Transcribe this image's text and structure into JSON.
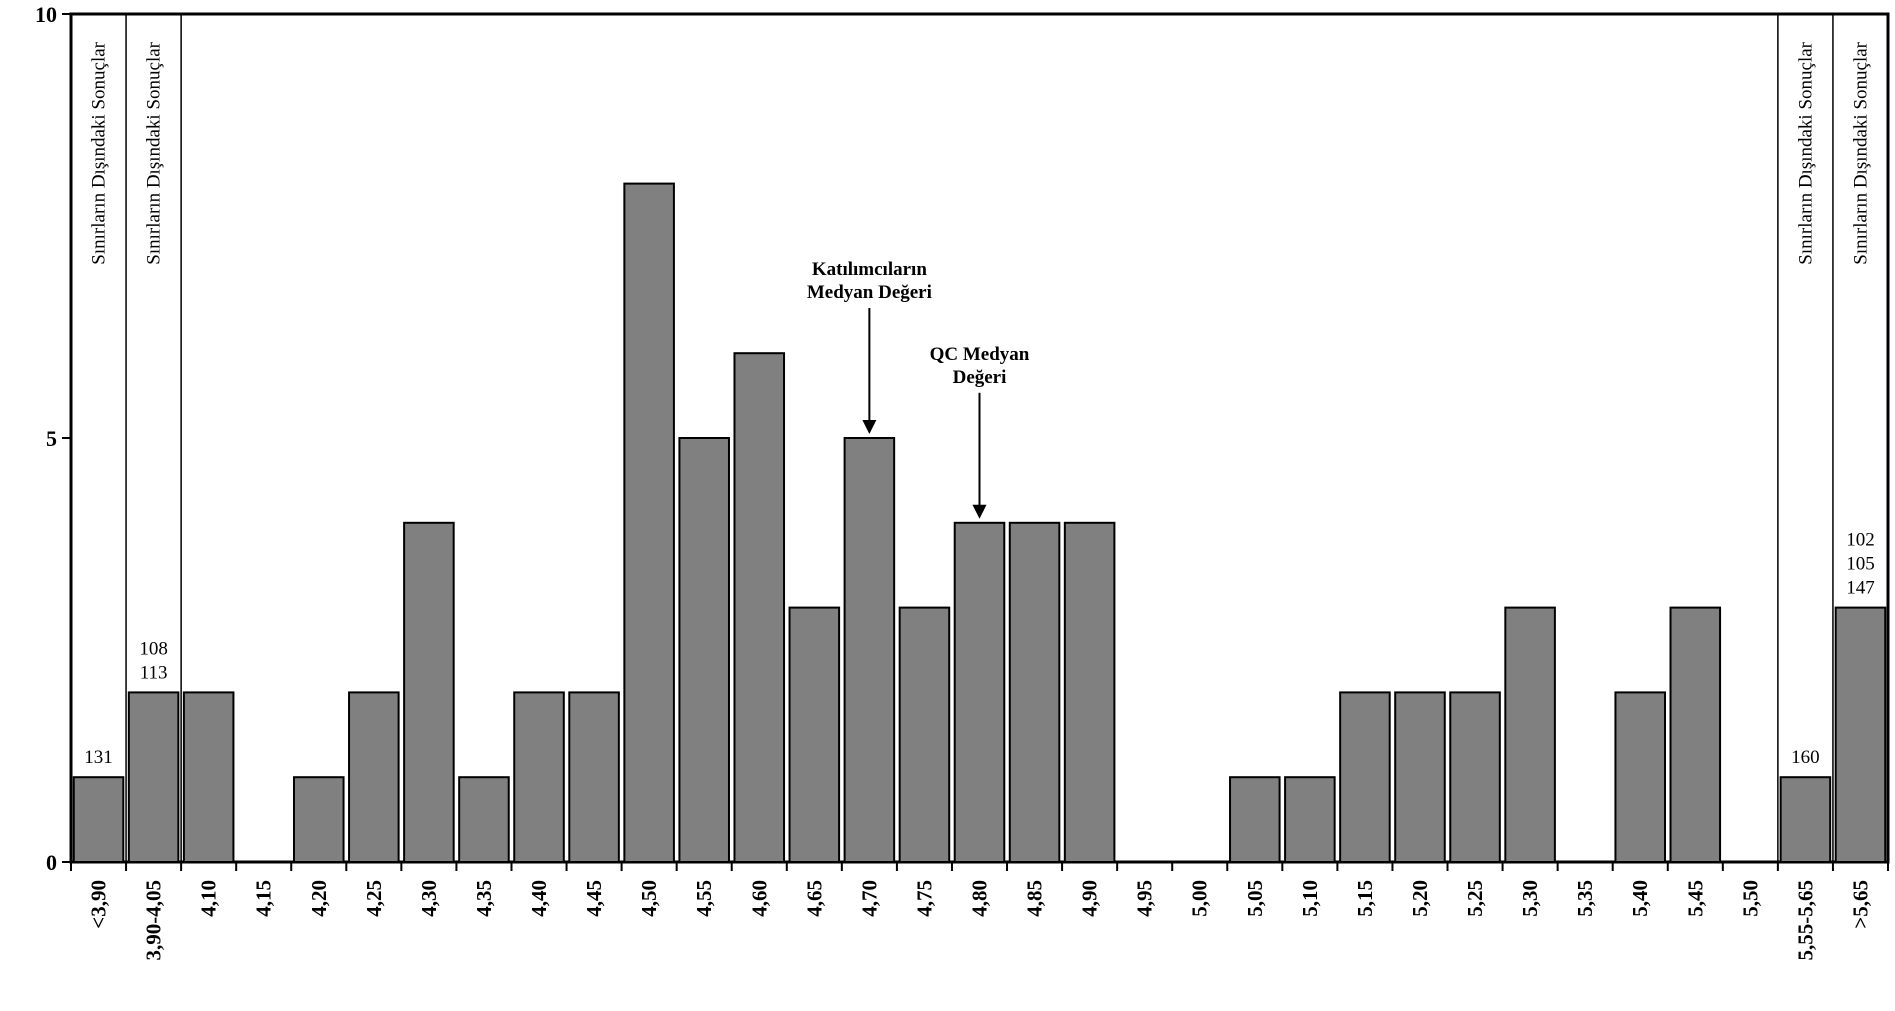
{
  "chart_data": {
    "type": "bar",
    "title": "",
    "xlabel": "",
    "ylabel": "",
    "ylim": [
      0,
      10
    ],
    "yticks": [
      "0",
      "5",
      "10"
    ],
    "grid": false,
    "legend": false,
    "categories": [
      "<3,90",
      "3,90-4,05",
      "4,10",
      "4,15",
      "4,20",
      "4,25",
      "4,30",
      "4,35",
      "4,40",
      "4,45",
      "4,50",
      "4,55",
      "4,60",
      "4,65",
      "4,70",
      "4,75",
      "4,80",
      "4,85",
      "4,90",
      "4,95",
      "5,00",
      "5,05",
      "5,10",
      "5,15",
      "5,20",
      "5,25",
      "5,30",
      "5,35",
      "5,40",
      "5,45",
      "5,50",
      "5,55-5,65",
      ">5,65"
    ],
    "values": [
      1,
      2,
      2,
      0,
      1,
      2,
      4,
      1,
      2,
      2,
      8,
      5,
      6,
      3,
      5,
      3,
      4,
      4,
      4,
      0,
      0,
      1,
      1,
      2,
      2,
      2,
      3,
      0,
      2,
      3,
      0,
      1,
      3
    ],
    "bar_color": "#808080",
    "out_of_range_label": "Sınırların Dışındaki Sonuçlar",
    "out_of_range_categories": [
      "<3,90",
      "3,90-4,05",
      "5,55-5,65",
      ">5,65"
    ],
    "bar_labels": [
      {
        "category": "<3,90",
        "lines": [
          "131"
        ]
      },
      {
        "category": "3,90-4,05",
        "lines": [
          "108",
          "113"
        ]
      },
      {
        "category": "5,55-5,65",
        "lines": [
          "160"
        ]
      },
      {
        "category": ">5,65",
        "lines": [
          "102",
          "105",
          "147"
        ]
      }
    ],
    "annotations": [
      {
        "lines": [
          "Katılımcıların",
          "Medyan Değeri"
        ],
        "category": "4,70"
      },
      {
        "lines": [
          "QC Medyan",
          "Değeri"
        ],
        "category": "4,80"
      }
    ]
  }
}
